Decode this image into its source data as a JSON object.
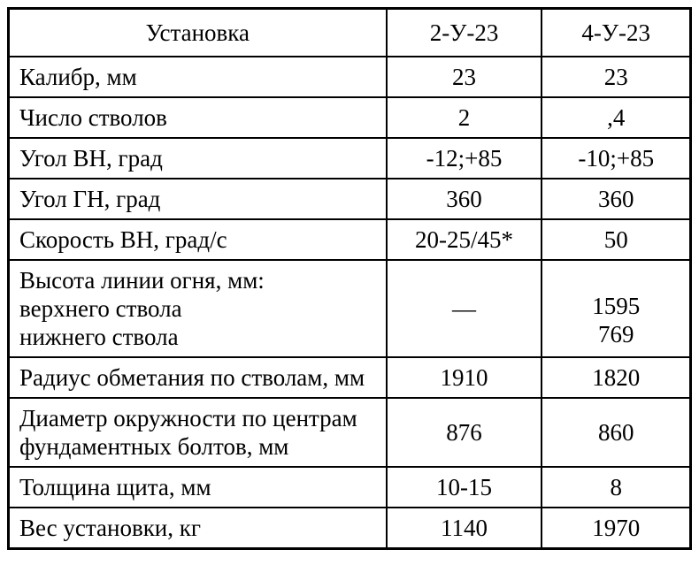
{
  "colors": {
    "border": "#000000",
    "background": "#ffffff",
    "text": "#000000"
  },
  "table": {
    "header": [
      "Установка",
      "2-У-23",
      "4-У-23"
    ],
    "rows": [
      {
        "label_lines": [
          "Калибр, мм"
        ],
        "values": [
          [
            "23"
          ],
          [
            "23"
          ]
        ]
      },
      {
        "label_lines": [
          "Число стволов"
        ],
        "values": [
          [
            "2"
          ],
          [
            ",4"
          ]
        ]
      },
      {
        "label_lines": [
          "Угол ВН, град"
        ],
        "values": [
          [
            "-12;+85"
          ],
          [
            "-10;+85"
          ]
        ]
      },
      {
        "label_lines": [
          "Угол ГН, град"
        ],
        "values": [
          [
            "360"
          ],
          [
            "360"
          ]
        ]
      },
      {
        "label_lines": [
          "Скорость ВН, град/с"
        ],
        "values": [
          [
            "20-25/45*"
          ],
          [
            "50"
          ]
        ]
      },
      {
        "label_lines": [
          "Высота линии огня, мм:",
          "верхнего ствола",
          "нижнего ствола"
        ],
        "values": [
          [
            "—"
          ],
          [
            "1595",
            "769"
          ]
        ]
      },
      {
        "label_lines": [
          "Радиус обметания по стволам, мм"
        ],
        "values": [
          [
            "1910"
          ],
          [
            "1820"
          ]
        ]
      },
      {
        "label_lines": [
          "Диаметр окружности по центрам",
          "фундаментных болтов, мм"
        ],
        "values": [
          [
            "876"
          ],
          [
            "860"
          ]
        ]
      },
      {
        "label_lines": [
          "Толщина щита, мм"
        ],
        "values": [
          [
            "10-15"
          ],
          [
            "8"
          ]
        ]
      },
      {
        "label_lines": [
          "Вес установки, кг"
        ],
        "values": [
          [
            "1140"
          ],
          [
            "1970"
          ]
        ]
      }
    ]
  }
}
